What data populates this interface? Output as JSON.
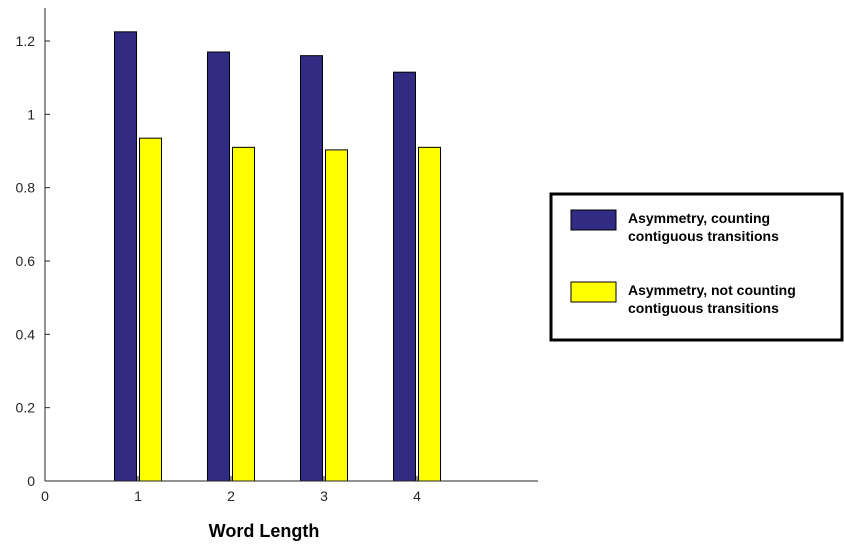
{
  "chart_data": {
    "type": "bar",
    "xlabel": "Word Length",
    "ylabel": "",
    "x_ticks": [
      "0",
      "1",
      "2",
      "3",
      "4"
    ],
    "y_ticks": [
      "0",
      "0.2",
      "0.4",
      "0.6",
      "0.8",
      "1",
      "1.2"
    ],
    "categories": [
      "1",
      "2",
      "3",
      "4"
    ],
    "xlim": [
      0,
      5
    ],
    "ylim": [
      0,
      1.3
    ],
    "grid": false,
    "legend_position": "right, outside",
    "series": [
      {
        "name": "Asymmetry, counting contiguous transitions",
        "legend_lines": [
          "Asymmetry, counting",
          "contiguous transitions"
        ],
        "color": "#312b84",
        "values": [
          1.225,
          1.17,
          1.16,
          1.115
        ]
      },
      {
        "name": "Asymmetry, not counting contiguous transitions",
        "legend_lines": [
          "Asymmetry, not counting",
          "contiguous transitions"
        ],
        "color": "#ffff00",
        "values": [
          0.935,
          0.91,
          0.903,
          0.91
        ]
      }
    ]
  }
}
